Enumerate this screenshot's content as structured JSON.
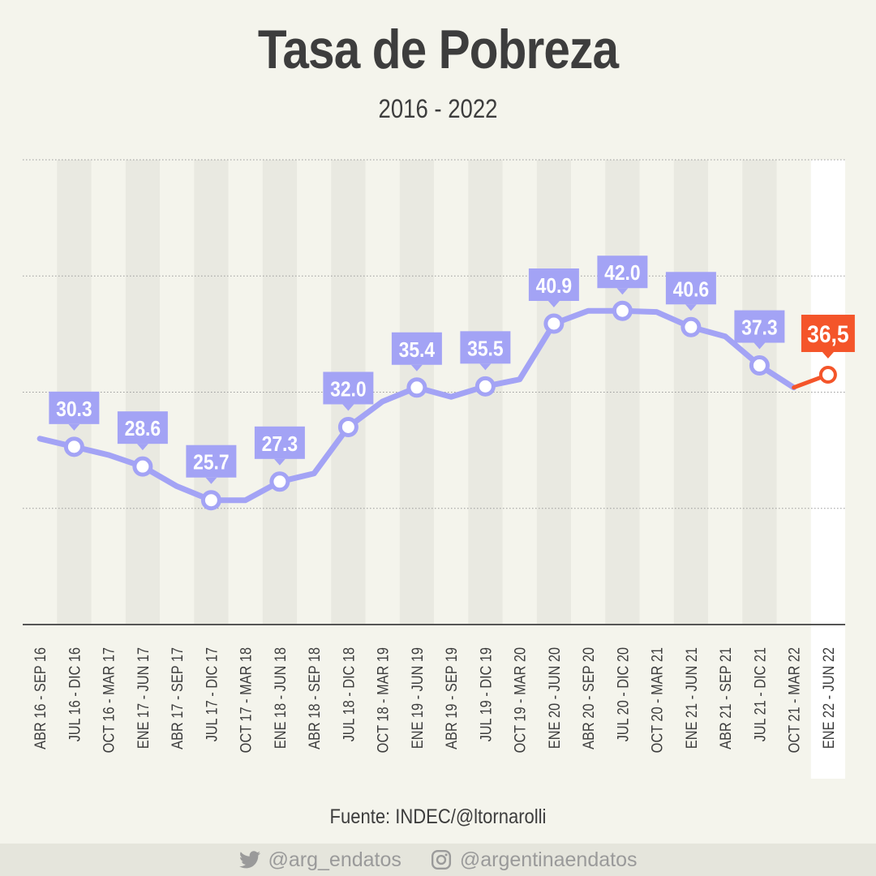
{
  "title": "Tasa de Pobreza",
  "subtitle": "2016 - 2022",
  "source": "Fuente: INDEC/@ltornarolli",
  "footer": {
    "twitter_icon": "twitter-bird-icon",
    "twitter_handle": "@arg_endatos",
    "instagram_icon": "instagram-icon",
    "instagram_handle": "@argentinaendatos"
  },
  "colors": {
    "line": "#a3a3f5",
    "label_bg": "#a3a3f5",
    "highlight": "#f4552a",
    "text": "#3d3d3d",
    "background": "#f4f4ec",
    "band": "#e9e9e1"
  },
  "chart_data": {
    "type": "line",
    "title": "Tasa de Pobreza",
    "subtitle": "2016 - 2022",
    "categories": [
      "ABR 16 - SEP 16",
      "JUL 16 - DIC 16",
      "OCT 16 - MAR 17",
      "ENE 17 - JUN 17",
      "ABR 17 - SEP 17",
      "JUL 17 - DIC 17",
      "OCT 17 - MAR 18",
      "ENE 18 - JUN 18",
      "ABR 18 - SEP 18",
      "JUL 18 - DIC 18",
      "OCT 18 - MAR 19",
      "ENE 19 - JUN 19",
      "ABR 19 - SEP 19",
      "JUL 19 - DIC 19",
      "OCT 19 - MAR 20",
      "ENE 20 - JUN 20",
      "ABR 20 - SEP 20",
      "JUL 20 - DIC 20",
      "OCT 20 - MAR 21",
      "ENE 21 - JUN 21",
      "ABR 21 - SEP 21",
      "JUL 21 - DIC 21",
      "OCT 21 - MAR 22",
      "ENE 22 - JUN 22"
    ],
    "values": [
      31.0,
      30.3,
      29.6,
      28.6,
      26.9,
      25.7,
      25.7,
      27.3,
      28.0,
      32.0,
      34.2,
      35.4,
      34.6,
      35.5,
      36.1,
      40.9,
      42.0,
      42.0,
      41.9,
      40.6,
      39.8,
      37.3,
      35.4,
      36.5
    ],
    "point_labels": [
      null,
      "30.3",
      null,
      "28.6",
      null,
      "25.7",
      null,
      "27.3",
      null,
      "32.0",
      null,
      "35.4",
      null,
      "35.5",
      null,
      "40.9",
      null,
      "42.0",
      null,
      "40.6",
      null,
      "37.3",
      null,
      "36,5"
    ],
    "highlight_index": 23,
    "ylim": [
      15,
      55
    ],
    "grid": "horizontal dotted",
    "legend": "none"
  }
}
